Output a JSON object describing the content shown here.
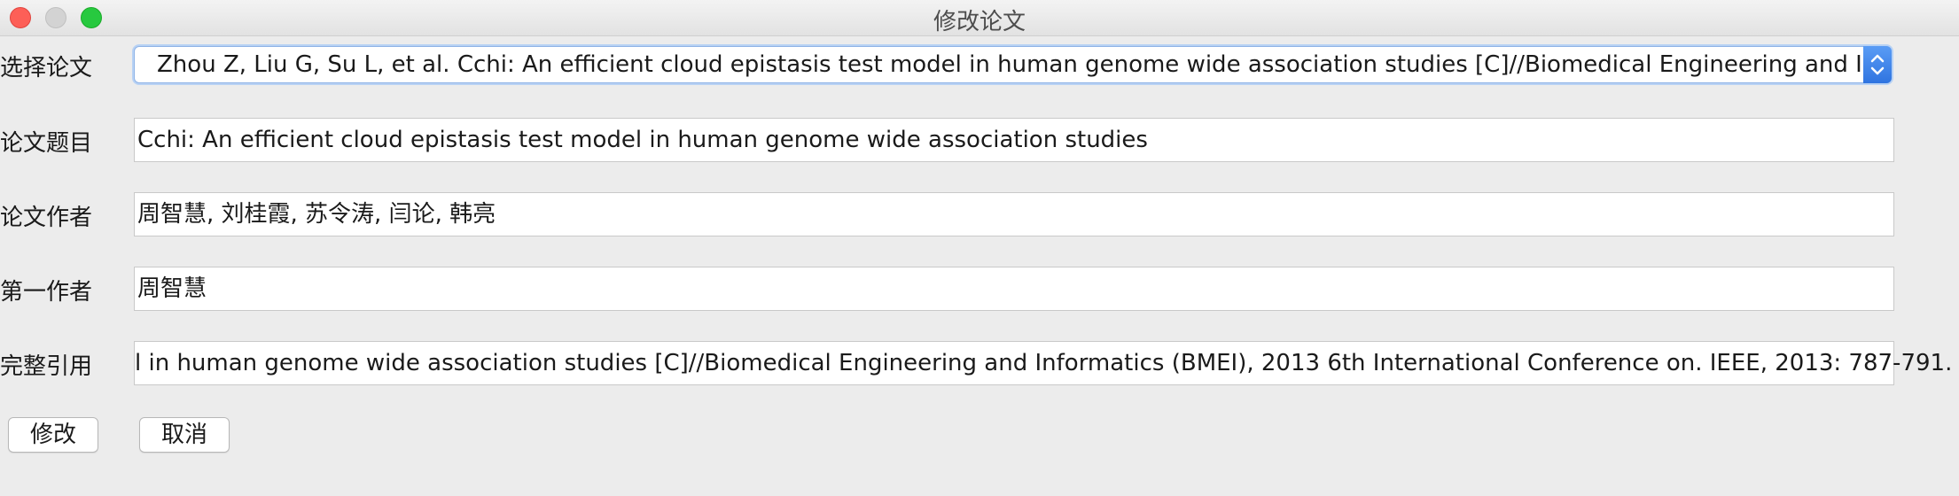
{
  "window": {
    "title": "修改论文"
  },
  "form": {
    "select_paper": {
      "label": "选择论文",
      "value": "Zhou Z, Liu G, Su L, et al. Cchi: An efficient cloud epistasis test model in human genome wide association studies [C]//Biomedical Engineering and I..."
    },
    "paper_title": {
      "label": "论文题目",
      "value": "Cchi: An efficient cloud epistasis test model in human genome wide association studies"
    },
    "paper_authors": {
      "label": "论文作者",
      "value": "周智慧, 刘桂霞, 苏令涛, 闫论, 韩亮"
    },
    "first_author": {
      "label": "第一作者",
      "value": "周智慧"
    },
    "full_citation": {
      "label": "完整引用",
      "value": "l in human genome wide association studies [C]//Biomedical Engineering and Informatics (BMEI), 2013 6th International Conference on. IEEE, 2013: 787-791."
    }
  },
  "buttons": {
    "modify": "修改",
    "cancel": "取消"
  },
  "colors": {
    "accent": "#3b82f0",
    "close": "#fd5f57",
    "maximize": "#27c93f"
  },
  "icons": {
    "combo_arrow": "chevron-up-down-icon"
  }
}
